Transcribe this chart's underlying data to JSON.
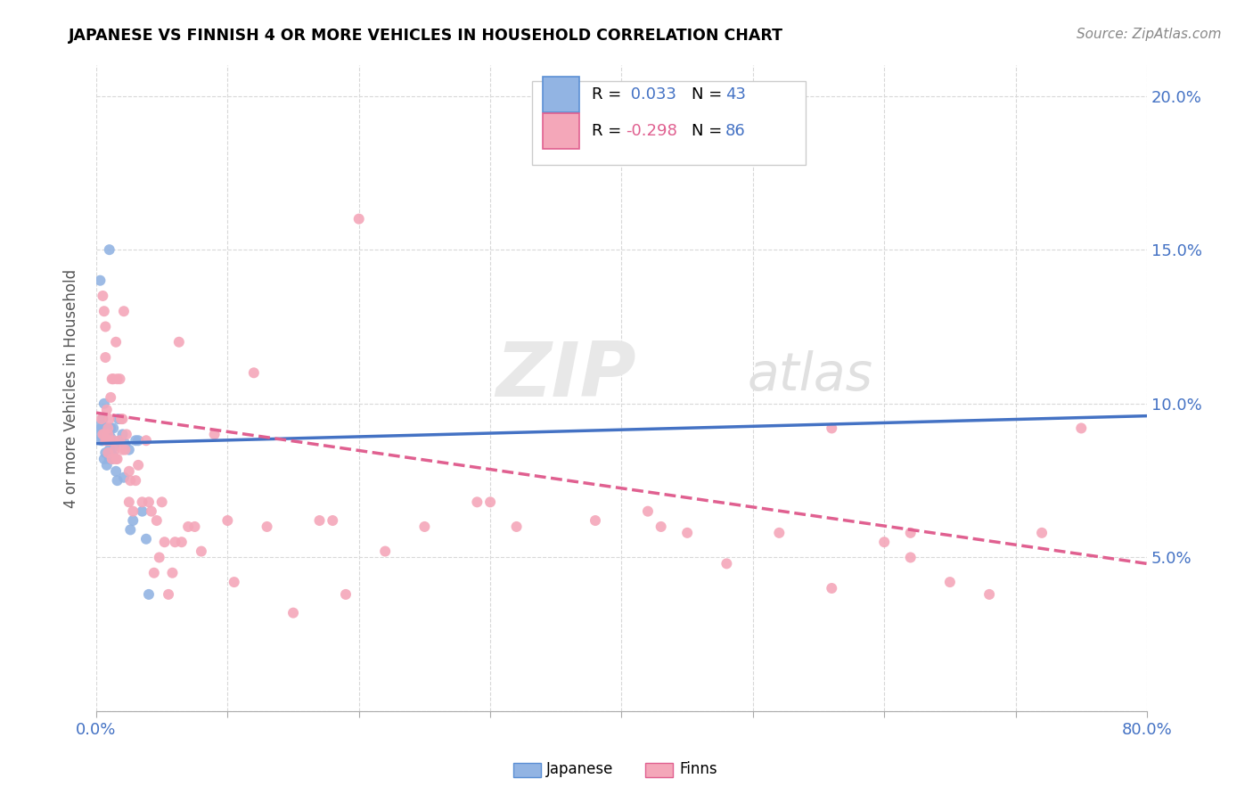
{
  "title": "JAPANESE VS FINNISH 4 OR MORE VEHICLES IN HOUSEHOLD CORRELATION CHART",
  "source": "Source: ZipAtlas.com",
  "ylabel": "4 or more Vehicles in Household",
  "xlim": [
    0,
    0.8
  ],
  "ylim": [
    0,
    0.21
  ],
  "xticks": [
    0.0,
    0.1,
    0.2,
    0.3,
    0.4,
    0.5,
    0.6,
    0.7,
    0.8
  ],
  "yticks": [
    0.0,
    0.05,
    0.1,
    0.15,
    0.2
  ],
  "japanese_color": "#92b4e3",
  "finns_color": "#f4a7b9",
  "japanese_trend_color": "#4472c4",
  "finns_trend_color": "#e06090",
  "watermark_zip": "ZIP",
  "watermark_atlas": "atlas",
  "japanese_x": [
    0.002,
    0.003,
    0.003,
    0.004,
    0.004,
    0.005,
    0.005,
    0.005,
    0.006,
    0.006,
    0.006,
    0.007,
    0.007,
    0.008,
    0.008,
    0.008,
    0.009,
    0.009,
    0.01,
    0.01,
    0.01,
    0.011,
    0.011,
    0.012,
    0.012,
    0.013,
    0.013,
    0.014,
    0.015,
    0.016,
    0.017,
    0.018,
    0.02,
    0.021,
    0.022,
    0.025,
    0.026,
    0.028,
    0.03,
    0.032,
    0.035,
    0.038,
    0.04
  ],
  "japanese_y": [
    0.09,
    0.093,
    0.14,
    0.088,
    0.092,
    0.09,
    0.095,
    0.088,
    0.091,
    0.082,
    0.1,
    0.084,
    0.092,
    0.088,
    0.092,
    0.08,
    0.09,
    0.088,
    0.082,
    0.085,
    0.15,
    0.089,
    0.092,
    0.082,
    0.088,
    0.083,
    0.092,
    0.086,
    0.078,
    0.075,
    0.095,
    0.088,
    0.09,
    0.076,
    0.087,
    0.085,
    0.059,
    0.062,
    0.088,
    0.088,
    0.065,
    0.056,
    0.038
  ],
  "japanese_trend_x": [
    0.0,
    0.8
  ],
  "japanese_trend_y": [
    0.087,
    0.096
  ],
  "finns_x": [
    0.004,
    0.005,
    0.005,
    0.006,
    0.006,
    0.007,
    0.007,
    0.007,
    0.008,
    0.008,
    0.009,
    0.009,
    0.009,
    0.01,
    0.01,
    0.011,
    0.012,
    0.012,
    0.013,
    0.013,
    0.014,
    0.015,
    0.015,
    0.016,
    0.016,
    0.018,
    0.018,
    0.019,
    0.02,
    0.02,
    0.021,
    0.022,
    0.023,
    0.025,
    0.025,
    0.026,
    0.028,
    0.03,
    0.032,
    0.035,
    0.038,
    0.04,
    0.042,
    0.044,
    0.046,
    0.048,
    0.05,
    0.052,
    0.055,
    0.058,
    0.06,
    0.063,
    0.065,
    0.07,
    0.075,
    0.08,
    0.1,
    0.105,
    0.12,
    0.13,
    0.15,
    0.17,
    0.19,
    0.2,
    0.22,
    0.25,
    0.29,
    0.32,
    0.38,
    0.42,
    0.45,
    0.48,
    0.52,
    0.56,
    0.6,
    0.62,
    0.65,
    0.68,
    0.72,
    0.75,
    0.56,
    0.62,
    0.43,
    0.3,
    0.18,
    0.09
  ],
  "finns_y": [
    0.095,
    0.09,
    0.135,
    0.09,
    0.13,
    0.088,
    0.115,
    0.125,
    0.088,
    0.098,
    0.084,
    0.09,
    0.092,
    0.088,
    0.095,
    0.102,
    0.082,
    0.108,
    0.088,
    0.108,
    0.085,
    0.12,
    0.082,
    0.108,
    0.082,
    0.088,
    0.108,
    0.095,
    0.085,
    0.095,
    0.13,
    0.085,
    0.09,
    0.068,
    0.078,
    0.075,
    0.065,
    0.075,
    0.08,
    0.068,
    0.088,
    0.068,
    0.065,
    0.045,
    0.062,
    0.05,
    0.068,
    0.055,
    0.038,
    0.045,
    0.055,
    0.12,
    0.055,
    0.06,
    0.06,
    0.052,
    0.062,
    0.042,
    0.11,
    0.06,
    0.032,
    0.062,
    0.038,
    0.16,
    0.052,
    0.06,
    0.068,
    0.06,
    0.062,
    0.065,
    0.058,
    0.048,
    0.058,
    0.092,
    0.055,
    0.058,
    0.042,
    0.038,
    0.058,
    0.092,
    0.04,
    0.05,
    0.06,
    0.068,
    0.062,
    0.09
  ],
  "finns_trend_x": [
    0.0,
    0.8
  ],
  "finns_trend_y": [
    0.097,
    0.048
  ]
}
